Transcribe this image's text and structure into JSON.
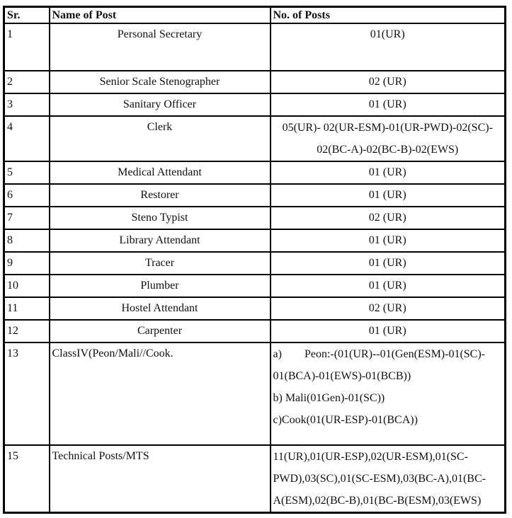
{
  "table": {
    "headers": [
      "Sr.",
      "Name of Post",
      "No. of Posts"
    ],
    "rows": [
      {
        "sr": "1",
        "name": "Personal Secretary",
        "posts": "01(UR)"
      },
      {
        "sr": "2",
        "name": "Senior Scale Stenographer",
        "posts": "02 (UR)"
      },
      {
        "sr": "3",
        "name": "Sanitary Officer",
        "posts": "01 (UR)"
      },
      {
        "sr": "4",
        "name": "Clerk",
        "posts_lines": [
          "05(UR)- 02(UR-ESM)-01(UR-PWD)-02(SC)-",
          "02(BC-A)-02(BC-B)-02(EWS)"
        ]
      },
      {
        "sr": "5",
        "name": "Medical Attendant",
        "posts": "01 (UR)"
      },
      {
        "sr": "6",
        "name": "Restorer",
        "posts": "01 (UR)"
      },
      {
        "sr": "7",
        "name": "Steno Typist",
        "posts": "02 (UR)"
      },
      {
        "sr": "8",
        "name": "Library Attendant",
        "posts": "01 (UR)"
      },
      {
        "sr": "9",
        "name": "Tracer",
        "posts": "01 (UR)"
      },
      {
        "sr": "10",
        "name": "Plumber",
        "posts": "01 (UR)"
      },
      {
        "sr": "11",
        "name": "Hostel Attendant",
        "posts": "02 (UR)"
      },
      {
        "sr": "12",
        "name": "Carpenter",
        "posts": "01 (UR)"
      },
      {
        "sr": "13",
        "name": "ClassIV(Peon/Mali//Cook.",
        "posts_label": "a)",
        "posts_lines": [
          "Peon:-(01(UR)--01(Gen(ESM)-01(SC)-",
          "01(BCA)-01(EWS)-01(BCB))",
          "b) Mali(01Gen)-01(SC))",
          "c)Cook(01(UR-ESP)-01(BCA))"
        ]
      },
      {
        "sr": "15",
        "name": "Technical Posts/MTS",
        "posts_lines": [
          "11(UR),01(UR-ESP),02(UR-ESM),01(SC-",
          "PWD),03(SC),01(SC-ESM),03(BC-A),01(BC-",
          "A(ESM),02(BC-B),01(BC-B(ESM),03(EWS)"
        ]
      }
    ],
    "colors": {
      "border": "#000000",
      "text": "#111111",
      "background": "#ffffff"
    }
  }
}
